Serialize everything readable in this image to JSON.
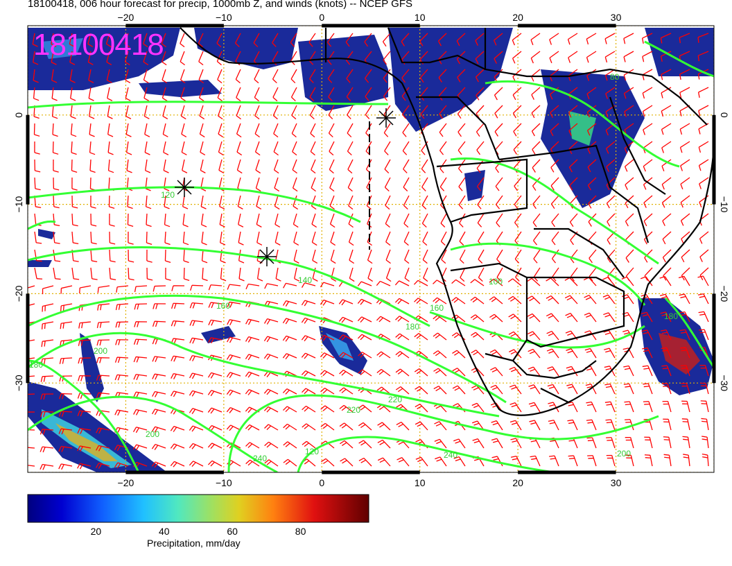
{
  "title": "18100418, 006 hour forecast for precip, 1000mb Z, and winds (knots) -- NCEP GFS",
  "stamp": "18100418",
  "map": {
    "lon_range": [
      -30,
      40
    ],
    "lat_range": [
      -40,
      10
    ],
    "lon_ticks": [
      "−20",
      "−10",
      "0",
      "10",
      "20",
      "30"
    ],
    "lat_ticks": [
      "0",
      "−10",
      "−20",
      "−30"
    ],
    "contour_labels": [
      "120",
      "140",
      "160",
      "180",
      "200",
      "220",
      "240",
      "120",
      "100",
      "80",
      "160",
      "180",
      "200",
      "240",
      "220",
      "200",
      "180"
    ],
    "colors": {
      "barbs": "#ff0000",
      "contours": "#33ff33",
      "coast": "#000000",
      "grid": "#e0b000",
      "contour_label": "#33cc33"
    }
  },
  "colorbar": {
    "ticks": [
      "20",
      "40",
      "60",
      "80"
    ],
    "label": "Precipitation, mm/day",
    "range": [
      0,
      100
    ]
  }
}
